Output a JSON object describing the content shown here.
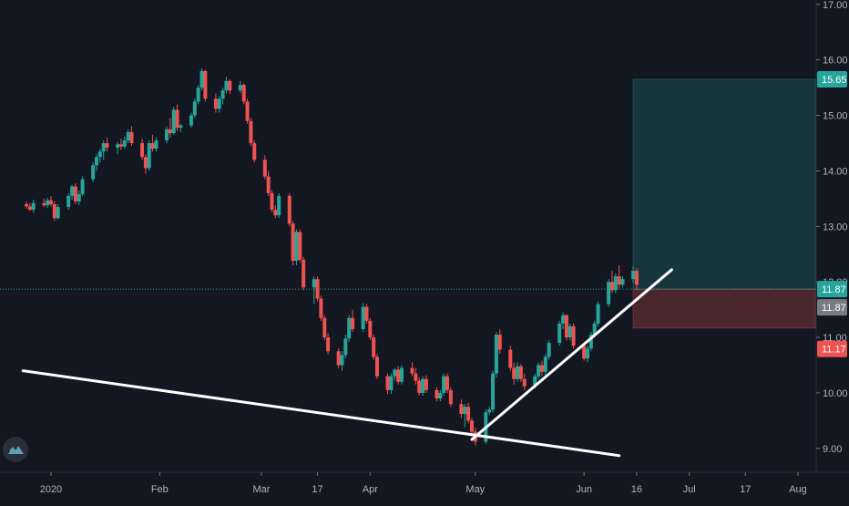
{
  "app": {
    "logo_icon": "tradingview-logo-icon",
    "background": "#131722",
    "text_color": "#b2b5be",
    "up_color": "#26a69a",
    "down_color": "#ef5350"
  },
  "chart_data": {
    "type": "candlestick",
    "y_axis": {
      "ticks": [
        9.0,
        10.0,
        11.0,
        12.0,
        13.0,
        14.0,
        15.0,
        16.0,
        17.0
      ],
      "tick_labels": [
        "9.00",
        "10.00",
        "11.00",
        "12.00",
        "13.00",
        "14.00",
        "15.00",
        "16.00",
        "17.00"
      ],
      "ylim": [
        8.57,
        17.08
      ]
    },
    "x_axis": {
      "labels": [
        {
          "text": "2020",
          "date": "2020-01-01"
        },
        {
          "text": "Feb",
          "date": "2020-02-01"
        },
        {
          "text": "Mar",
          "date": "2020-03-01"
        },
        {
          "text": "17",
          "date": "2020-03-17"
        },
        {
          "text": "Apr",
          "date": "2020-04-01"
        },
        {
          "text": "May",
          "date": "2020-05-01"
        },
        {
          "text": "Jun",
          "date": "2020-06-01"
        },
        {
          "text": "16",
          "date": "2020-06-16"
        },
        {
          "text": "Jul",
          "date": "2020-07-01"
        },
        {
          "text": "17",
          "date": "2020-07-17"
        },
        {
          "text": "Aug",
          "date": "2020-08-01"
        }
      ],
      "xlim": [
        "2019-12-25",
        "2020-08-01"
      ]
    },
    "candles_start_date": "2019-12-25",
    "candles": [
      [
        13.4,
        13.45,
        13.32,
        13.36
      ],
      [
        13.36,
        13.42,
        13.28,
        13.3
      ],
      [
        13.3,
        13.48,
        13.25,
        13.42
      ],
      [
        13.42,
        13.5,
        13.35,
        13.38
      ],
      [
        13.38,
        13.52,
        13.33,
        13.47
      ],
      [
        13.47,
        13.55,
        13.36,
        13.4
      ],
      [
        13.4,
        13.46,
        13.1,
        13.15
      ],
      [
        13.15,
        13.4,
        13.12,
        13.35
      ],
      [
        13.35,
        13.6,
        13.3,
        13.55
      ],
      [
        13.55,
        13.75,
        13.48,
        13.72
      ],
      [
        13.72,
        13.78,
        13.4,
        13.45
      ],
      [
        13.45,
        13.65,
        13.38,
        13.58
      ],
      [
        13.58,
        13.9,
        13.55,
        13.85
      ],
      [
        13.85,
        14.15,
        13.8,
        14.1
      ],
      [
        14.1,
        14.3,
        14.0,
        14.25
      ],
      [
        14.25,
        14.4,
        14.15,
        14.35
      ],
      [
        14.35,
        14.55,
        14.2,
        14.5
      ],
      [
        14.5,
        14.6,
        14.35,
        14.42
      ],
      [
        14.42,
        14.52,
        14.3,
        14.48
      ],
      [
        14.48,
        14.58,
        14.38,
        14.44
      ],
      [
        14.44,
        14.62,
        14.4,
        14.55
      ],
      [
        14.55,
        14.75,
        14.5,
        14.7
      ],
      [
        14.7,
        14.8,
        14.45,
        14.5
      ],
      [
        14.5,
        14.58,
        14.2,
        14.25
      ],
      [
        14.25,
        14.3,
        13.95,
        14.05
      ],
      [
        14.05,
        14.55,
        14.0,
        14.5
      ],
      [
        14.5,
        14.65,
        14.35,
        14.4
      ],
      [
        14.4,
        14.6,
        14.35,
        14.55
      ],
      [
        14.55,
        14.8,
        14.5,
        14.75
      ],
      [
        14.75,
        14.95,
        14.6,
        14.68
      ],
      [
        14.68,
        15.15,
        14.65,
        15.1
      ],
      [
        15.1,
        15.2,
        14.72,
        14.78
      ],
      [
        14.78,
        14.85,
        14.7,
        14.82
      ],
      [
        14.82,
        15.05,
        14.78,
        15.0
      ],
      [
        15.0,
        15.3,
        14.95,
        15.25
      ],
      [
        15.25,
        15.55,
        15.2,
        15.5
      ],
      [
        15.5,
        15.85,
        15.45,
        15.8
      ],
      [
        15.8,
        15.82,
        15.25,
        15.3
      ],
      [
        15.3,
        15.4,
        15.05,
        15.12
      ],
      [
        15.12,
        15.35,
        15.05,
        15.3
      ],
      [
        15.3,
        15.5,
        15.2,
        15.45
      ],
      [
        15.45,
        15.7,
        15.4,
        15.62
      ],
      [
        15.62,
        15.65,
        15.38,
        15.45
      ],
      [
        15.45,
        15.62,
        15.4,
        15.55
      ],
      [
        15.55,
        15.58,
        15.2,
        15.25
      ],
      [
        15.25,
        15.3,
        14.85,
        14.9
      ],
      [
        14.9,
        14.95,
        14.45,
        14.5
      ],
      [
        14.5,
        14.55,
        14.15,
        14.2
      ],
      [
        14.2,
        14.28,
        13.85,
        13.9
      ],
      [
        13.9,
        14.0,
        13.55,
        13.6
      ],
      [
        13.6,
        13.65,
        13.25,
        13.3
      ],
      [
        13.3,
        13.38,
        13.15,
        13.2
      ],
      [
        13.2,
        13.6,
        13.15,
        13.55
      ],
      [
        13.55,
        13.6,
        13.0,
        13.05
      ],
      [
        13.05,
        13.1,
        12.3,
        12.38
      ],
      [
        12.38,
        12.95,
        12.3,
        12.9
      ],
      [
        12.9,
        12.95,
        12.35,
        12.4
      ],
      [
        12.4,
        12.45,
        11.85,
        11.9
      ],
      [
        11.9,
        12.1,
        11.6,
        12.05
      ],
      [
        12.05,
        12.1,
        11.65,
        11.7
      ],
      [
        11.7,
        11.75,
        11.3,
        11.35
      ],
      [
        11.35,
        11.4,
        10.95,
        11.0
      ],
      [
        11.0,
        11.08,
        10.7,
        10.75
      ],
      [
        10.75,
        10.8,
        10.45,
        10.5
      ],
      [
        10.5,
        10.75,
        10.4,
        10.68
      ],
      [
        10.68,
        11.05,
        10.62,
        10.98
      ],
      [
        10.98,
        11.4,
        10.92,
        11.35
      ],
      [
        11.35,
        11.5,
        11.1,
        11.15
      ],
      [
        11.15,
        11.62,
        11.1,
        11.55
      ],
      [
        11.55,
        11.6,
        11.25,
        11.3
      ],
      [
        11.3,
        11.35,
        10.95,
        11.0
      ],
      [
        11.0,
        11.05,
        10.6,
        10.65
      ],
      [
        10.65,
        10.7,
        10.25,
        10.3
      ],
      [
        10.3,
        10.35,
        9.98,
        10.05
      ],
      [
        10.05,
        10.35,
        9.98,
        10.3
      ],
      [
        10.3,
        10.45,
        10.22,
        10.42
      ],
      [
        10.42,
        10.48,
        10.15,
        10.2
      ],
      [
        10.2,
        10.5,
        10.15,
        10.45
      ],
      [
        10.45,
        10.55,
        10.3,
        10.35
      ],
      [
        10.35,
        10.45,
        10.15,
        10.22
      ],
      [
        10.22,
        10.28,
        9.95,
        10.0
      ],
      [
        10.0,
        10.3,
        9.95,
        10.25
      ],
      [
        10.25,
        10.32,
        10.0,
        10.05
      ],
      [
        10.05,
        10.1,
        9.85,
        9.9
      ],
      [
        9.9,
        10.05,
        9.85,
        10.0
      ],
      [
        10.0,
        10.35,
        9.95,
        10.3
      ],
      [
        10.3,
        10.35,
        10.0,
        10.05
      ],
      [
        10.05,
        10.1,
        9.75,
        9.8
      ],
      [
        9.8,
        9.88,
        9.55,
        9.62
      ],
      [
        9.62,
        9.8,
        9.38,
        9.75
      ],
      [
        9.75,
        9.82,
        9.45,
        9.5
      ],
      [
        9.5,
        9.55,
        9.22,
        9.3
      ],
      [
        9.3,
        9.38,
        9.05,
        9.12
      ],
      [
        9.12,
        9.7,
        9.08,
        9.65
      ],
      [
        9.65,
        9.75,
        9.6,
        9.7
      ],
      [
        9.7,
        10.4,
        9.65,
        10.35
      ],
      [
        10.35,
        11.1,
        10.28,
        11.05
      ],
      [
        11.05,
        11.15,
        10.7,
        10.78
      ],
      [
        10.78,
        10.85,
        10.4,
        10.45
      ],
      [
        10.45,
        10.55,
        10.15,
        10.25
      ],
      [
        10.25,
        10.55,
        10.2,
        10.48
      ],
      [
        10.48,
        10.52,
        10.2,
        10.25
      ],
      [
        10.25,
        10.35,
        10.05,
        10.12
      ],
      [
        10.12,
        10.35,
        10.08,
        10.3
      ],
      [
        10.3,
        10.55,
        10.25,
        10.5
      ],
      [
        10.5,
        10.58,
        10.3,
        10.38
      ],
      [
        10.38,
        10.7,
        10.32,
        10.65
      ],
      [
        10.65,
        10.95,
        10.6,
        10.9
      ],
      [
        10.9,
        11.3,
        10.85,
        11.25
      ],
      [
        11.25,
        11.45,
        11.15,
        11.4
      ],
      [
        11.4,
        11.42,
        10.95,
        11.0
      ],
      [
        11.0,
        11.25,
        10.95,
        11.2
      ],
      [
        11.2,
        11.25,
        10.8,
        10.85
      ],
      [
        10.85,
        10.9,
        10.58,
        10.62
      ],
      [
        10.62,
        10.85,
        10.55,
        10.8
      ],
      [
        10.8,
        11.1,
        10.75,
        11.05
      ],
      [
        11.05,
        11.3,
        11.0,
        11.25
      ],
      [
        11.25,
        11.65,
        11.2,
        11.6
      ],
      [
        11.6,
        12.05,
        11.55,
        12.0
      ],
      [
        12.0,
        12.2,
        11.8,
        11.85
      ],
      [
        11.85,
        12.15,
        11.8,
        12.1
      ],
      [
        12.1,
        12.3,
        11.88,
        11.95
      ],
      [
        11.95,
        12.1,
        11.9,
        12.05
      ],
      [
        12.05,
        12.28,
        11.98,
        12.2
      ],
      [
        12.2,
        12.25,
        11.85,
        11.95
      ]
    ],
    "annotations": {
      "current_price": 11.87,
      "position": {
        "entry": 11.87,
        "target": 15.65,
        "stop": 11.17,
        "start_date": "2020-06-15",
        "end_date": "2020-07-31"
      },
      "trendlines": [
        {
          "from": {
            "date": "2019-12-24",
            "price": 10.4
          },
          "to": {
            "date": "2020-06-11",
            "price": 8.87
          }
        },
        {
          "from": {
            "date": "2020-04-30",
            "price": 9.16
          },
          "to": {
            "date": "2020-06-26",
            "price": 12.22
          }
        }
      ]
    },
    "price_labels": [
      {
        "text": "15.65",
        "role": "target",
        "bg": "#26a69a",
        "fg": "#ffffff"
      },
      {
        "text": "11.87",
        "role": "last",
        "bg": "#26a69a",
        "fg": "#ffffff"
      },
      {
        "text": "11.87",
        "role": "entry",
        "bg": "#787b86",
        "fg": "#ffffff"
      },
      {
        "text": "11.17",
        "role": "stop",
        "bg": "#ef5350",
        "fg": "#ffffff"
      }
    ]
  }
}
